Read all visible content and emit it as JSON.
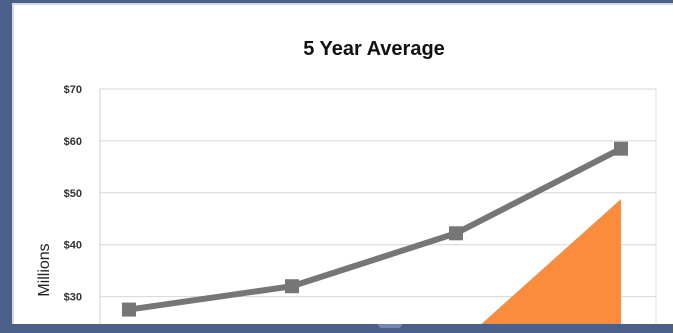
{
  "chart_data": {
    "type": "line",
    "title": "5 Year Average",
    "ylabel": "Millions",
    "ylim": [
      20,
      70
    ],
    "yticks": [
      "$30",
      "$40",
      "$50",
      "$60",
      "$70"
    ],
    "grid": true,
    "series": [
      {
        "values": [
          27.5,
          32,
          42.2,
          58.5
        ],
        "color": "#767676"
      }
    ],
    "overlay_color": "#fa8c3c"
  }
}
